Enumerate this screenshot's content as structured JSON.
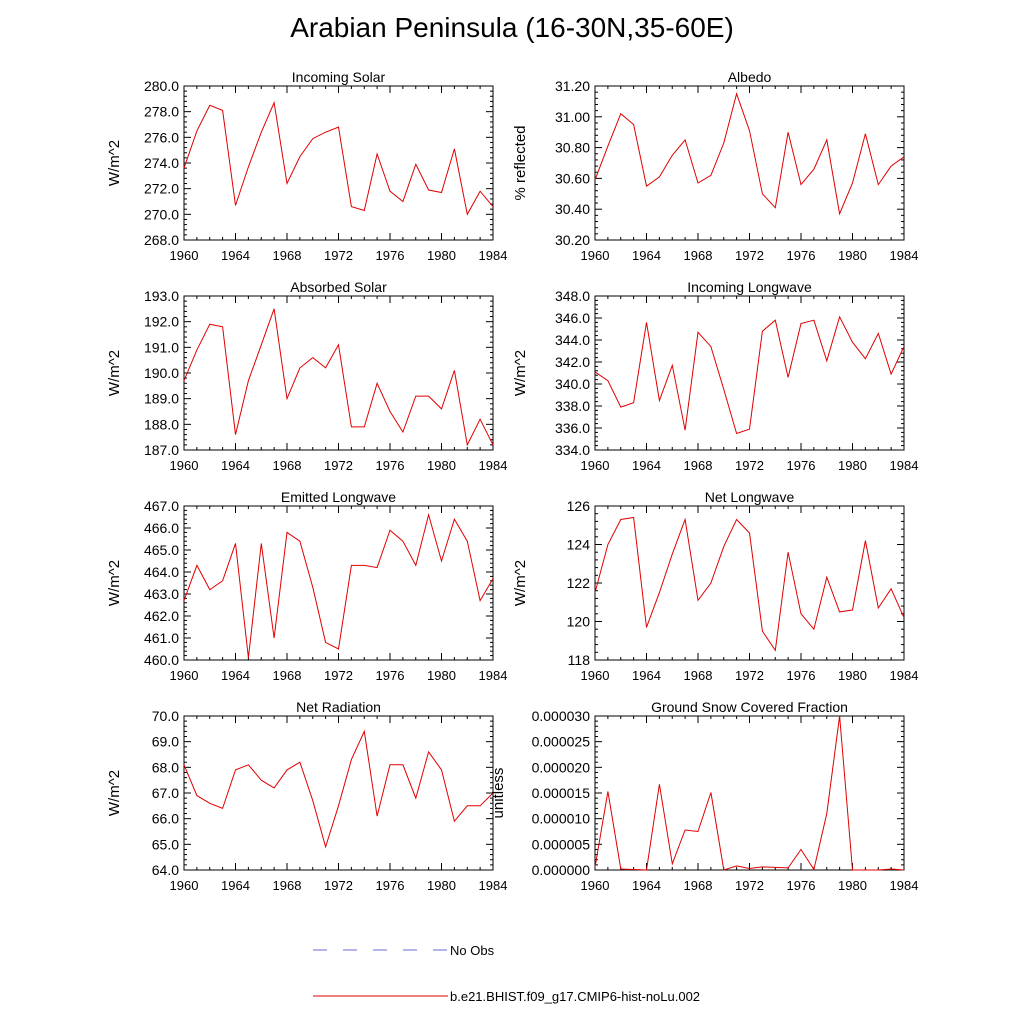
{
  "figure_title": "Arabian Peninsula (16-30N,35-60E)",
  "colors": {
    "model_line": "#e00000",
    "obs_line": "#6a6ad8",
    "axis": "#000000"
  },
  "legend": {
    "entries": [
      {
        "label": "No Obs",
        "style": "dashed",
        "color": "#6a6ad8"
      },
      {
        "label": "b.e21.BHIST.f09_g17.CMIP6-hist-noLu.002",
        "style": "solid",
        "color": "#e00000"
      }
    ]
  },
  "chart_data": [
    {
      "type": "line",
      "title": "Incoming Solar",
      "ylabel": "W/m^2",
      "xlim": [
        1960,
        1984
      ],
      "ylim": [
        268,
        280
      ],
      "xticks": [
        1960,
        1964,
        1968,
        1972,
        1976,
        1980,
        1984
      ],
      "xtick_labels": [
        "1960",
        "1964",
        "1968",
        "1972",
        "1976",
        "1980",
        "1984"
      ],
      "yticks": [
        268,
        270,
        272,
        274,
        276,
        278,
        280
      ],
      "ytick_labels": [
        "268.0",
        "270.0",
        "272.0",
        "274.0",
        "276.0",
        "278.0",
        "280.0"
      ],
      "series": [
        {
          "x": [
            1960,
            1961,
            1962,
            1963,
            1964,
            1965,
            1966,
            1967,
            1968,
            1969,
            1970,
            1971,
            1972,
            1973,
            1974,
            1975,
            1976,
            1977,
            1978,
            1979,
            1980,
            1981,
            1982,
            1983,
            1984
          ],
          "y": [
            273.6,
            276.5,
            278.5,
            278.1,
            270.7,
            273.7,
            276.4,
            278.7,
            272.4,
            274.5,
            275.9,
            276.4,
            276.8,
            270.6,
            270.3,
            274.7,
            271.8,
            271.0,
            273.9,
            271.9,
            271.7,
            275.1,
            270.0,
            271.8,
            270.6
          ]
        }
      ]
    },
    {
      "type": "line",
      "title": "Albedo",
      "ylabel": "% reflected",
      "xlim": [
        1960,
        1984
      ],
      "ylim": [
        30.2,
        31.2
      ],
      "xticks": [
        1960,
        1964,
        1968,
        1972,
        1976,
        1980,
        1984
      ],
      "xtick_labels": [
        "1960",
        "1964",
        "1968",
        "1972",
        "1976",
        "1980",
        "1984"
      ],
      "yticks": [
        30.2,
        30.4,
        30.6,
        30.8,
        31.0,
        31.2
      ],
      "ytick_labels": [
        "30.20",
        "30.40",
        "30.60",
        "30.80",
        "31.00",
        "31.20"
      ],
      "series": [
        {
          "x": [
            1960,
            1961,
            1962,
            1963,
            1964,
            1965,
            1966,
            1967,
            1968,
            1969,
            1970,
            1971,
            1972,
            1973,
            1974,
            1975,
            1976,
            1977,
            1978,
            1979,
            1980,
            1981,
            1982,
            1983,
            1984
          ],
          "y": [
            30.59,
            30.81,
            31.02,
            30.95,
            30.55,
            30.61,
            30.75,
            30.85,
            30.57,
            30.62,
            30.83,
            31.15,
            30.91,
            30.5,
            30.41,
            30.9,
            30.56,
            30.66,
            30.85,
            30.37,
            30.57,
            30.89,
            30.56,
            30.68,
            30.74
          ]
        }
      ]
    },
    {
      "type": "line",
      "title": "Absorbed Solar",
      "ylabel": "W/m^2",
      "xlim": [
        1960,
        1984
      ],
      "ylim": [
        187,
        193
      ],
      "xticks": [
        1960,
        1964,
        1968,
        1972,
        1976,
        1980,
        1984
      ],
      "xtick_labels": [
        "1960",
        "1964",
        "1968",
        "1972",
        "1976",
        "1980",
        "1984"
      ],
      "yticks": [
        187,
        188,
        189,
        190,
        191,
        192,
        193
      ],
      "ytick_labels": [
        "187.0",
        "188.0",
        "189.0",
        "190.0",
        "191.0",
        "192.0",
        "193.0"
      ],
      "series": [
        {
          "x": [
            1960,
            1961,
            1962,
            1963,
            1964,
            1965,
            1966,
            1967,
            1968,
            1969,
            1970,
            1971,
            1972,
            1973,
            1974,
            1975,
            1976,
            1977,
            1978,
            1979,
            1980,
            1981,
            1982,
            1983,
            1984
          ],
          "y": [
            189.7,
            190.9,
            191.9,
            191.8,
            187.6,
            189.7,
            191.1,
            192.5,
            189.0,
            190.2,
            190.6,
            190.2,
            191.1,
            187.9,
            187.9,
            189.6,
            188.5,
            187.7,
            189.1,
            189.1,
            188.6,
            190.1,
            187.2,
            188.2,
            187.2
          ]
        }
      ]
    },
    {
      "type": "line",
      "title": "Incoming Longwave",
      "ylabel": "W/m^2",
      "xlim": [
        1960,
        1984
      ],
      "ylim": [
        334,
        348
      ],
      "xticks": [
        1960,
        1964,
        1968,
        1972,
        1976,
        1980,
        1984
      ],
      "xtick_labels": [
        "1960",
        "1964",
        "1968",
        "1972",
        "1976",
        "1980",
        "1984"
      ],
      "yticks": [
        334,
        336,
        338,
        340,
        342,
        344,
        346,
        348
      ],
      "ytick_labels": [
        "334.0",
        "336.0",
        "338.0",
        "340.0",
        "342.0",
        "344.0",
        "346.0",
        "348.0"
      ],
      "series": [
        {
          "x": [
            1960,
            1961,
            1962,
            1963,
            1964,
            1965,
            1966,
            1967,
            1968,
            1969,
            1970,
            1971,
            1972,
            1973,
            1974,
            1975,
            1976,
            1977,
            1978,
            1979,
            1980,
            1981,
            1982,
            1983,
            1984
          ],
          "y": [
            341.1,
            340.3,
            337.9,
            338.3,
            345.6,
            338.5,
            341.7,
            335.8,
            344.7,
            343.4,
            339.5,
            335.5,
            335.9,
            344.8,
            345.8,
            340.6,
            345.5,
            345.8,
            342.1,
            346.1,
            343.8,
            342.3,
            344.6,
            340.9,
            343.4
          ]
        }
      ]
    },
    {
      "type": "line",
      "title": "Emitted Longwave",
      "ylabel": "W/m^2",
      "xlim": [
        1960,
        1984
      ],
      "ylim": [
        460,
        467
      ],
      "xticks": [
        1960,
        1964,
        1968,
        1972,
        1976,
        1980,
        1984
      ],
      "xtick_labels": [
        "1960",
        "1964",
        "1968",
        "1972",
        "1976",
        "1980",
        "1984"
      ],
      "yticks": [
        460,
        461,
        462,
        463,
        464,
        465,
        466,
        467
      ],
      "ytick_labels": [
        "460.0",
        "461.0",
        "462.0",
        "463.0",
        "464.0",
        "465.0",
        "466.0",
        "467.0"
      ],
      "series": [
        {
          "x": [
            1960,
            1961,
            1962,
            1963,
            1964,
            1965,
            1966,
            1967,
            1968,
            1969,
            1970,
            1971,
            1972,
            1973,
            1974,
            1975,
            1976,
            1977,
            1978,
            1979,
            1980,
            1981,
            1982,
            1983,
            1984
          ],
          "y": [
            462.7,
            464.3,
            463.2,
            463.6,
            465.3,
            460.1,
            465.3,
            461.0,
            465.8,
            465.4,
            463.3,
            460.8,
            460.5,
            464.3,
            464.3,
            464.2,
            465.9,
            465.4,
            464.3,
            466.6,
            464.5,
            466.4,
            465.4,
            462.7,
            463.7
          ]
        }
      ]
    },
    {
      "type": "line",
      "title": "Net Longwave",
      "ylabel": "W/m^2",
      "xlim": [
        1960,
        1984
      ],
      "ylim": [
        118,
        126
      ],
      "xticks": [
        1960,
        1964,
        1968,
        1972,
        1976,
        1980,
        1984
      ],
      "xtick_labels": [
        "1960",
        "1964",
        "1968",
        "1972",
        "1976",
        "1980",
        "1984"
      ],
      "yticks": [
        118,
        120,
        122,
        124,
        126
      ],
      "ytick_labels": [
        "118",
        "120",
        "122",
        "124",
        "126"
      ],
      "series": [
        {
          "x": [
            1960,
            1961,
            1962,
            1963,
            1964,
            1965,
            1966,
            1967,
            1968,
            1969,
            1970,
            1971,
            1972,
            1973,
            1974,
            1975,
            1976,
            1977,
            1978,
            1979,
            1980,
            1981,
            1982,
            1983,
            1984
          ],
          "y": [
            121.5,
            124.0,
            125.3,
            125.4,
            119.7,
            121.5,
            123.5,
            125.3,
            121.1,
            122.0,
            123.9,
            125.3,
            124.6,
            119.5,
            118.5,
            123.6,
            120.4,
            119.6,
            122.3,
            120.5,
            120.6,
            124.2,
            120.7,
            121.7,
            120.2
          ]
        }
      ]
    },
    {
      "type": "line",
      "title": "Net Radiation",
      "ylabel": "W/m^2",
      "xlim": [
        1960,
        1984
      ],
      "ylim": [
        64,
        70
      ],
      "xticks": [
        1960,
        1964,
        1968,
        1972,
        1976,
        1980,
        1984
      ],
      "xtick_labels": [
        "1960",
        "1964",
        "1968",
        "1972",
        "1976",
        "1980",
        "1984"
      ],
      "yticks": [
        64,
        65,
        66,
        67,
        68,
        69,
        70
      ],
      "ytick_labels": [
        "64.0",
        "65.0",
        "66.0",
        "67.0",
        "68.0",
        "69.0",
        "70.0"
      ],
      "series": [
        {
          "x": [
            1960,
            1961,
            1962,
            1963,
            1964,
            1965,
            1966,
            1967,
            1968,
            1969,
            1970,
            1971,
            1972,
            1973,
            1974,
            1975,
            1976,
            1977,
            1978,
            1979,
            1980,
            1981,
            1982,
            1983,
            1984
          ],
          "y": [
            68.1,
            66.9,
            66.6,
            66.4,
            67.9,
            68.1,
            67.5,
            67.2,
            67.9,
            68.2,
            66.7,
            64.9,
            66.5,
            68.3,
            69.4,
            66.1,
            68.1,
            68.1,
            66.8,
            68.6,
            67.9,
            65.9,
            66.5,
            66.5,
            67.0
          ]
        }
      ]
    },
    {
      "type": "line",
      "title": "Ground Snow Covered Fraction",
      "ylabel": "unitless",
      "xlim": [
        1960,
        1984
      ],
      "ylim": [
        0,
        3e-05
      ],
      "xticks": [
        1960,
        1964,
        1968,
        1972,
        1976,
        1980,
        1984
      ],
      "xtick_labels": [
        "1960",
        "1964",
        "1968",
        "1972",
        "1976",
        "1980",
        "1984"
      ],
      "yticks": [
        0,
        5e-06,
        1e-05,
        1.5e-05,
        2e-05,
        2.5e-05,
        3e-05
      ],
      "ytick_labels": [
        "0.000000",
        "0.000005",
        "0.000010",
        "0.000015",
        "0.000020",
        "0.000025",
        "0.000030"
      ],
      "series": [
        {
          "x": [
            1960,
            1961,
            1962,
            1963,
            1964,
            1965,
            1966,
            1967,
            1968,
            1969,
            1970,
            1971,
            1972,
            1973,
            1974,
            1975,
            1976,
            1977,
            1978,
            1979,
            1980,
            1981,
            1982,
            1983,
            1984
          ],
          "y": [
            5e-07,
            1.53e-05,
            2e-07,
            1e-07,
            0.0,
            1.67e-05,
            1.2e-06,
            7.8e-06,
            7.5e-06,
            1.51e-05,
            0.0,
            8e-07,
            3e-07,
            6e-07,
            5e-07,
            4e-07,
            4e-06,
            1e-07,
            1.1e-05,
            3e-05,
            0.0,
            0.0,
            0.0,
            2e-07,
            0.0
          ]
        }
      ]
    }
  ]
}
